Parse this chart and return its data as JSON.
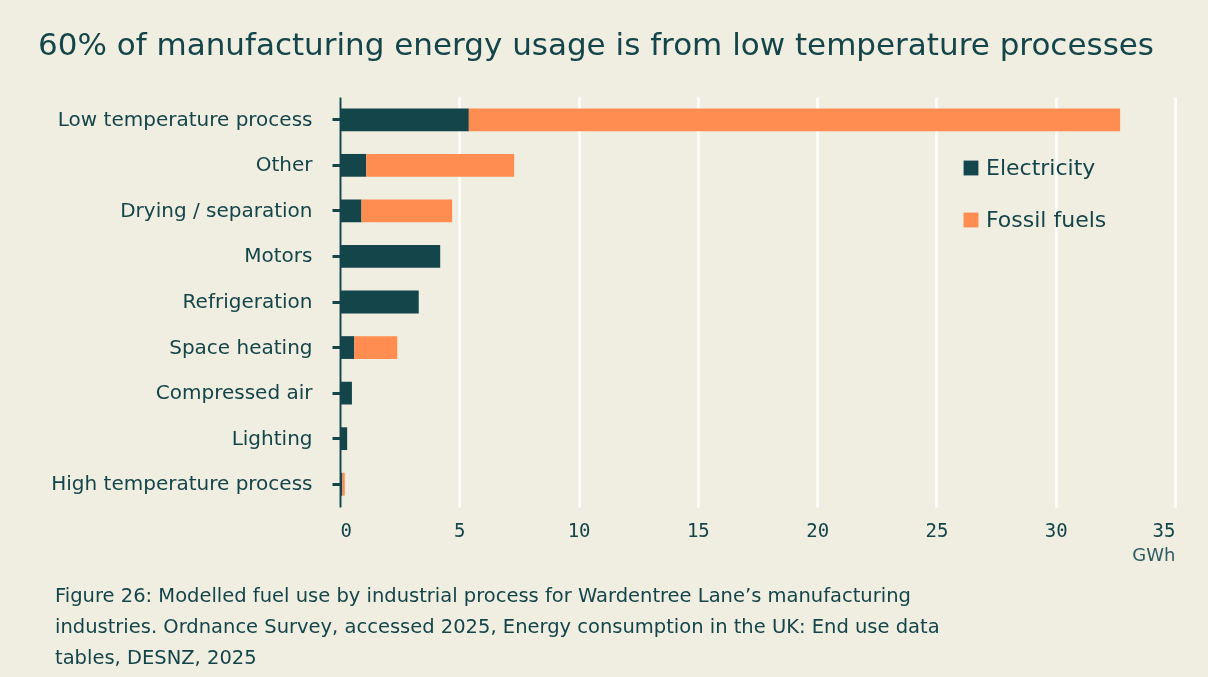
{
  "chart_data": {
    "type": "bar",
    "orientation": "horizontal",
    "stacked": true,
    "title": "60% of manufacturing energy usage is from low temperature processes",
    "xlabel": "GWh",
    "categories": [
      "Low temperature process",
      "Other",
      "Drying / separation",
      "Motors",
      "Refrigeration",
      "Space heating",
      "Compressed air",
      "Lighting",
      "High temperature process"
    ],
    "series": [
      {
        "name": "Electricity",
        "color": "#14454a",
        "values": [
          5.4,
          1.1,
          0.9,
          4.2,
          3.3,
          0.6,
          0.5,
          0.3,
          0.1
        ]
      },
      {
        "name": "Fossil fuels",
        "color": "#ff8c50",
        "values": [
          27.3,
          6.2,
          3.8,
          0,
          0,
          1.8,
          0,
          0,
          0.1
        ]
      }
    ],
    "xlim": [
      0,
      35
    ],
    "xticks": [
      0,
      5,
      10,
      15,
      20,
      25,
      30,
      35
    ],
    "grid": "x",
    "legend": "top right",
    "annotations": [
      "Figure 26: Modelled fuel use by industrial process for Wardentree Lane’s manufacturing industries. Ordnance Survey, accessed 2025, Energy consumption in the UK: End use data tables, DESNZ, 2025"
    ]
  }
}
